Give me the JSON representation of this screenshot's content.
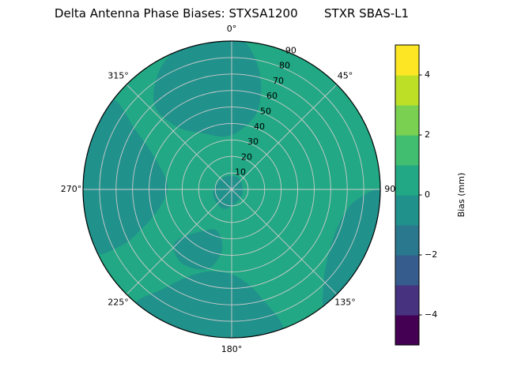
{
  "chart_data": {
    "type": "heatmap",
    "projection": "polar",
    "title": "Delta Antenna Phase Biases: STXSA1200       STXR SBAS-L1",
    "angular_ticks": [
      "0°",
      "45°",
      "90°",
      "135°",
      "180°",
      "225°",
      "270°",
      "315°"
    ],
    "radial_ticks": [
      "10",
      "20",
      "30",
      "40",
      "50",
      "60",
      "70",
      "80",
      "90"
    ],
    "radial_max": 90,
    "rlabel_angle_deg": 22.5,
    "grid_color": "#cccccc",
    "outline_color": "#000000",
    "base_value_mm": 0.5,
    "base_color": "#22a884",
    "low_region_value_mm": -0.5,
    "low_region_color": "#21918c",
    "regions": [
      {
        "name": "upper-low-bias-region",
        "points": [
          [
            332,
            0.97
          ],
          [
            318,
            0.78
          ],
          [
            319,
            0.56
          ],
          [
            334,
            0.42
          ],
          [
            352,
            0.36
          ],
          [
            8,
            0.4
          ],
          [
            18,
            0.54
          ],
          [
            16,
            0.72
          ],
          [
            10,
            0.9
          ],
          [
            2,
            1.03
          ],
          [
            348,
            1.03
          ]
        ]
      },
      {
        "name": "left-low-bias-region",
        "points": [
          [
            306,
            1.03
          ],
          [
            301,
            0.74
          ],
          [
            289,
            0.52
          ],
          [
            272,
            0.43
          ],
          [
            257,
            0.49
          ],
          [
            247,
            0.64
          ],
          [
            243,
            0.84
          ],
          [
            247,
            1.03
          ],
          [
            275,
            1.03
          ]
        ]
      },
      {
        "name": "bottom-low-bias-region",
        "points": [
          [
            219,
            1.03
          ],
          [
            214,
            0.8
          ],
          [
            203,
            0.62
          ],
          [
            189,
            0.56
          ],
          [
            175,
            0.6
          ],
          [
            165,
            0.75
          ],
          [
            161,
            1.03
          ],
          [
            190,
            1.03
          ]
        ]
      },
      {
        "name": "inner-low-bias-spur",
        "points": [
          [
            227,
            0.52
          ],
          [
            213,
            0.33
          ],
          [
            198,
            0.3
          ],
          [
            189,
            0.42
          ],
          [
            197,
            0.56
          ],
          [
            214,
            0.6
          ]
        ]
      },
      {
        "name": "right-low-bias-region",
        "points": [
          [
            91,
            1.03
          ],
          [
            95,
            0.84
          ],
          [
            107,
            0.76
          ],
          [
            123,
            0.78
          ],
          [
            136,
            0.89
          ],
          [
            141,
            1.03
          ],
          [
            115,
            1.06
          ]
        ]
      },
      {
        "name": "center-low-bias-spot",
        "points": [
          [
            30,
            0.09
          ],
          [
            120,
            0.08
          ],
          [
            200,
            0.14
          ],
          [
            255,
            0.13
          ],
          [
            320,
            0.1
          ]
        ]
      }
    ],
    "colorbar": {
      "label": "Bias (mm)",
      "min": -5,
      "max": 5,
      "ticks": [
        {
          "value": 4,
          "label": "4"
        },
        {
          "value": 2,
          "label": "2"
        },
        {
          "value": 0,
          "label": "0"
        },
        {
          "value": -2,
          "label": "−2"
        },
        {
          "value": -4,
          "label": "−4"
        }
      ],
      "band_colors": [
        "#440154",
        "#46327e",
        "#365c8d",
        "#2a788e",
        "#21918c",
        "#22a884",
        "#42be71",
        "#7ad151",
        "#bddf26",
        "#fde725"
      ]
    }
  }
}
